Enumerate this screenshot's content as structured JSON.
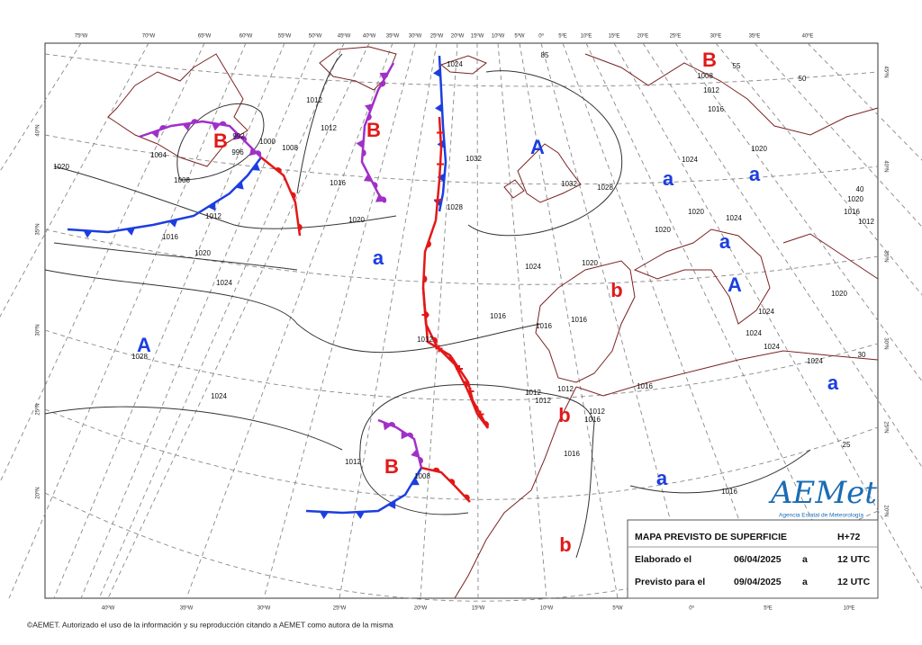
{
  "top_lon_labels": [
    "75ºW",
    "70ºW",
    "65ºW",
    "60ºW",
    "55ºW",
    "50ºW",
    "45ºW",
    "40ºW",
    "35ºW",
    "30ºW",
    "25ºW",
    "20ºW",
    "15ºW",
    "10ºW",
    "5ºW",
    "0º",
    "5ºE",
    "10ºE",
    "15ºE",
    "20ºE",
    "25ºE",
    "30ºE",
    "35ºE",
    "40ºE"
  ],
  "bottom_lon_labels": [
    "40ºW",
    "35ºW",
    "30ºW",
    "25ºW",
    "20ºW",
    "15ºW",
    "10ºW",
    "5ºW",
    "0º",
    "5ºE",
    "10ºE"
  ],
  "left_lat_labels": [
    "40ºN",
    "35ºN",
    "30ºN",
    "25ºN",
    "20ºN"
  ],
  "right_lat_labels": [
    "45ºN",
    "40ºN",
    "35ºN",
    "30ºN",
    "25ºN",
    "20ºN"
  ],
  "pressure_centers": [
    "B",
    "B",
    "B",
    "A",
    "a",
    "a",
    "a",
    "b",
    "A",
    "a",
    "A",
    "a",
    "b",
    "B",
    "a",
    "b"
  ],
  "isobar_labels": [
    "1012",
    "1012",
    "1000",
    "1008",
    "996",
    "992",
    "1004",
    "1020",
    "1008",
    "1012",
    "1016",
    "1020",
    "1024",
    "1016",
    "1020",
    "1032",
    "1032",
    "1028",
    "1028",
    "1024",
    "1008",
    "1012",
    "1016",
    "1020",
    "1024",
    "1020",
    "1024",
    "1020",
    "1020",
    "1024",
    "1016",
    "1016",
    "1016",
    "1012",
    "1028",
    "1024",
    "1012",
    "1012",
    "1012",
    "1012",
    "1016",
    "1016",
    "1016",
    "1016",
    "1012",
    "1008",
    "1024",
    "1024",
    "1024",
    "1020",
    "1024",
    "1016",
    "1012",
    "1020",
    "50",
    "55",
    "40",
    "30",
    "25",
    "85"
  ],
  "legend": {
    "title": "MAPA PREVISTO DE SUPERFICIE",
    "step": "H+72",
    "rows": [
      [
        "Elaborado el",
        "06/04/2025",
        "a",
        "12 UTC"
      ],
      [
        "Previsto para el",
        "09/04/2025",
        "a",
        "12 UTC"
      ]
    ]
  },
  "logo": {
    "name": "AEMet",
    "subtitle": "Agencia Estatal de Meteorología"
  },
  "copyright": "©AEMET. Autorizado el uso de la información y su reproducción citando a AEMET como autora de la misma"
}
